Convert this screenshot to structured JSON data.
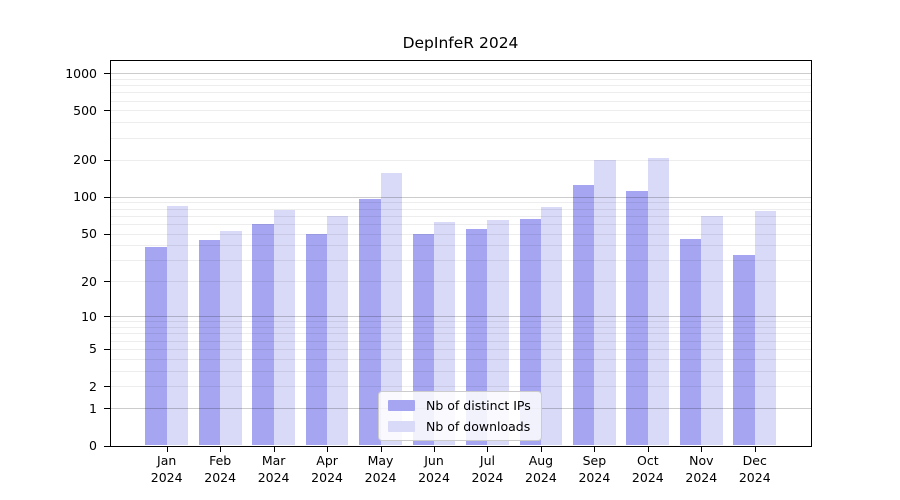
{
  "chart_data": {
    "type": "bar",
    "title": "DepInfeR 2024",
    "categories": [
      "Jan",
      "Feb",
      "Mar",
      "Apr",
      "May",
      "Jun",
      "Jul",
      "Aug",
      "Sep",
      "Oct",
      "Nov",
      "Dec"
    ],
    "category_sub_label": "2024",
    "series": [
      {
        "name": "Nb of distinct IPs",
        "color": "#a5a5f1",
        "values": [
          39,
          44,
          60,
          50,
          95,
          50,
          54,
          66,
          124,
          112,
          45,
          33
        ]
      },
      {
        "name": "Nb of downloads",
        "color": "#d9d9f8",
        "values": [
          84,
          52,
          78,
          70,
          155,
          62,
          64,
          82,
          197,
          204,
          70,
          77
        ]
      }
    ],
    "y_axis": {
      "scale": "log1p",
      "tick_labels": [
        0,
        1,
        2,
        5,
        10,
        20,
        50,
        100,
        200,
        500,
        1000
      ],
      "ylim": [
        0,
        1280
      ],
      "grid": "both"
    },
    "legend_position": "lower-center-inside"
  }
}
